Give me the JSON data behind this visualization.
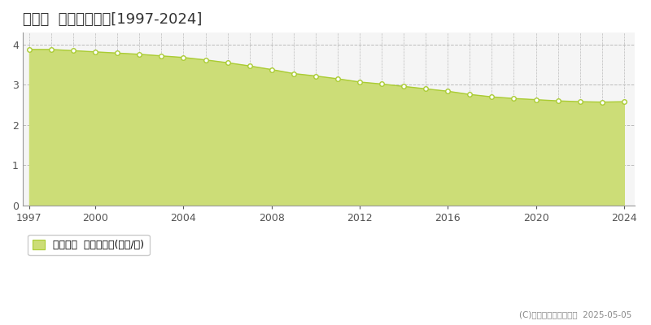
{
  "title": "共和町  基準地価推移[1997-2024]",
  "years": [
    1997,
    1998,
    1999,
    2000,
    2001,
    2002,
    2003,
    2004,
    2005,
    2006,
    2007,
    2008,
    2009,
    2010,
    2011,
    2012,
    2013,
    2014,
    2015,
    2016,
    2017,
    2018,
    2019,
    2020,
    2021,
    2022,
    2023,
    2024
  ],
  "values": [
    3.88,
    3.88,
    3.85,
    3.82,
    3.79,
    3.76,
    3.72,
    3.68,
    3.62,
    3.55,
    3.47,
    3.38,
    3.28,
    3.22,
    3.15,
    3.07,
    3.02,
    2.96,
    2.9,
    2.84,
    2.76,
    2.7,
    2.66,
    2.63,
    2.6,
    2.58,
    2.57,
    2.58
  ],
  "line_color": "#aac c33",
  "fill_color": "#ccdd66",
  "marker_face_color": "#ffffff",
  "marker_edge_color": "#aabb33",
  "grid_color": "#bbbbbb",
  "background_color": "#ffffff",
  "plot_bg_color": "#f5f5f5",
  "ylim": [
    0,
    4.3
  ],
  "yticks": [
    0,
    1,
    2,
    3,
    4
  ],
  "xticks": [
    1997,
    2000,
    2004,
    2008,
    2012,
    2016,
    2020,
    2024
  ],
  "legend_label": "基準地価  平均坪単価(万円/坪)",
  "copyright_text": "(C)土地価格ドットコム  2025-05-05",
  "title_fontsize": 13,
  "tick_fontsize": 9,
  "legend_fontsize": 9
}
